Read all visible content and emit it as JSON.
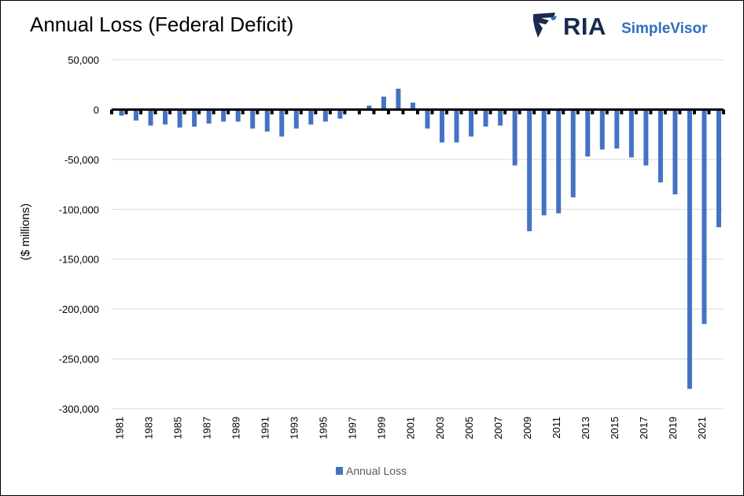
{
  "title": "Annual Loss (Federal Deficit)",
  "logo": {
    "primary": "RIA",
    "secondary": "SimpleVisor",
    "icon": "eagle-icon"
  },
  "colors": {
    "bar": "#4472c4",
    "brand_dark": "#1a2a4f",
    "brand_blue": "#2f6fbd",
    "grid": "#d9d9d9",
    "zero_line": "#000000"
  },
  "chart_data": {
    "type": "bar",
    "title": "Annual Loss (Federal Deficit)",
    "ylabel": "($ millions)",
    "xlabel": "",
    "ylim": [
      -300000,
      50000
    ],
    "yticks": [
      50000,
      0,
      -50000,
      -100000,
      -150000,
      -200000,
      -250000,
      -300000
    ],
    "ytick_labels": [
      "50,000",
      "0",
      "-50,000",
      "-100,000",
      "-150,000",
      "-200,000",
      "-250,000",
      "-300,000"
    ],
    "xtick_labels": [
      "1981",
      "1983",
      "1985",
      "1987",
      "1989",
      "1991",
      "1993",
      "1995",
      "1997",
      "1999",
      "2001",
      "2003",
      "2005",
      "2007",
      "2009",
      "2011",
      "2013",
      "2015",
      "2017",
      "2019",
      "2021"
    ],
    "grid": true,
    "legend_position": "bottom",
    "categories": [
      "1981",
      "1982",
      "1983",
      "1984",
      "1985",
      "1986",
      "1987",
      "1988",
      "1989",
      "1990",
      "1991",
      "1992",
      "1993",
      "1994",
      "1995",
      "1996",
      "1997",
      "1998",
      "1999",
      "2000",
      "2001",
      "2002",
      "2003",
      "2004",
      "2005",
      "2006",
      "2007",
      "2008",
      "2009",
      "2010",
      "2011",
      "2012",
      "2013",
      "2014",
      "2015",
      "2016",
      "2017",
      "2018",
      "2019",
      "2020",
      "2021",
      "2022"
    ],
    "series": [
      {
        "name": "Annual Loss",
        "values": [
          -6000,
          -11000,
          -16000,
          -15000,
          -18000,
          -17000,
          -14000,
          -12000,
          -12000,
          -19000,
          -22000,
          -27000,
          -19000,
          -15000,
          -12000,
          -9000,
          0,
          4000,
          13000,
          21000,
          7000,
          -19000,
          -33000,
          -33000,
          -27000,
          -17000,
          -16000,
          -56000,
          -122000,
          -106000,
          -104000,
          -88000,
          -47000,
          -40000,
          -39000,
          -48000,
          -56000,
          -73000,
          -85000,
          -280000,
          -215000,
          -118000
        ]
      }
    ]
  }
}
